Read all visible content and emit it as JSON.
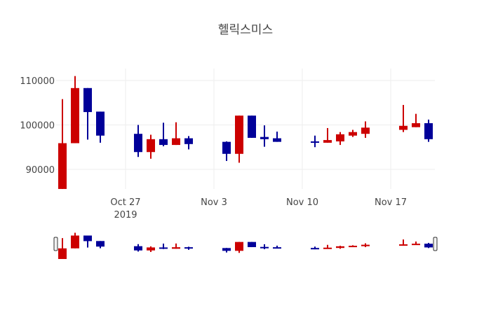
{
  "chart_data": {
    "type": "candlestick",
    "title": "헬릭스미스",
    "xlabel": "",
    "ylabel": "",
    "ylim": [
      85600,
      112700
    ],
    "xlim": [
      "2019-10-22",
      "2019-11-20"
    ],
    "grid": true,
    "rangeslider": true,
    "legend": "none",
    "increasing_color": "#cc0000",
    "decreasing_color": "#000099",
    "y_ticks": [
      {
        "value": 90000,
        "label": "90000"
      },
      {
        "value": 100000,
        "label": "100000"
      },
      {
        "value": 110000,
        "label": "110000"
      }
    ],
    "x_ticks": [
      {
        "date": "2019-10-27",
        "label": "Oct 27",
        "sublabel": "2019"
      },
      {
        "date": "2019-11-03",
        "label": "Nov 3",
        "sublabel": ""
      },
      {
        "date": "2019-11-10",
        "label": "Nov 10",
        "sublabel": ""
      },
      {
        "date": "2019-11-17",
        "label": "Nov 17",
        "sublabel": ""
      }
    ],
    "candles": [
      {
        "date": "2019-10-22",
        "open": 85600,
        "high": 105800,
        "low": 85600,
        "close": 95900
      },
      {
        "date": "2019-10-23",
        "open": 95900,
        "high": 111000,
        "low": 95900,
        "close": 108300
      },
      {
        "date": "2019-10-24",
        "open": 108300,
        "high": 108300,
        "low": 96700,
        "close": 102900
      },
      {
        "date": "2019-10-25",
        "open": 103000,
        "high": 103000,
        "low": 96000,
        "close": 97600
      },
      {
        "date": "2019-10-28",
        "open": 98000,
        "high": 100000,
        "low": 92800,
        "close": 93900
      },
      {
        "date": "2019-10-29",
        "open": 93900,
        "high": 97800,
        "low": 92400,
        "close": 96800
      },
      {
        "date": "2019-10-30",
        "open": 96800,
        "high": 100500,
        "low": 95200,
        "close": 95500
      },
      {
        "date": "2019-10-31",
        "open": 95500,
        "high": 100600,
        "low": 95500,
        "close": 97000
      },
      {
        "date": "2019-11-01",
        "open": 97000,
        "high": 97500,
        "low": 94500,
        "close": 95700
      },
      {
        "date": "2019-11-04",
        "open": 96200,
        "high": 96300,
        "low": 91900,
        "close": 93500
      },
      {
        "date": "2019-11-05",
        "open": 93500,
        "high": 102100,
        "low": 91500,
        "close": 102100
      },
      {
        "date": "2019-11-06",
        "open": 102100,
        "high": 102100,
        "low": 97100,
        "close": 97100
      },
      {
        "date": "2019-11-07",
        "open": 97300,
        "high": 99900,
        "low": 95100,
        "close": 96800
      },
      {
        "date": "2019-11-08",
        "open": 97000,
        "high": 98500,
        "low": 96200,
        "close": 96200
      },
      {
        "date": "2019-11-11",
        "open": 96300,
        "high": 97600,
        "low": 95000,
        "close": 96000
      },
      {
        "date": "2019-11-12",
        "open": 96000,
        "high": 99300,
        "low": 96000,
        "close": 96600
      },
      {
        "date": "2019-11-13",
        "open": 96300,
        "high": 98400,
        "low": 95500,
        "close": 97900
      },
      {
        "date": "2019-11-14",
        "open": 97600,
        "high": 98900,
        "low": 97300,
        "close": 98400
      },
      {
        "date": "2019-11-15",
        "open": 98000,
        "high": 100800,
        "low": 97100,
        "close": 99400
      },
      {
        "date": "2019-11-18",
        "open": 98900,
        "high": 104500,
        "low": 98400,
        "close": 99800
      },
      {
        "date": "2019-11-19",
        "open": 99500,
        "high": 102500,
        "low": 99500,
        "close": 100400
      },
      {
        "date": "2019-11-20",
        "open": 100400,
        "high": 101200,
        "low": 96200,
        "close": 96800
      }
    ]
  }
}
